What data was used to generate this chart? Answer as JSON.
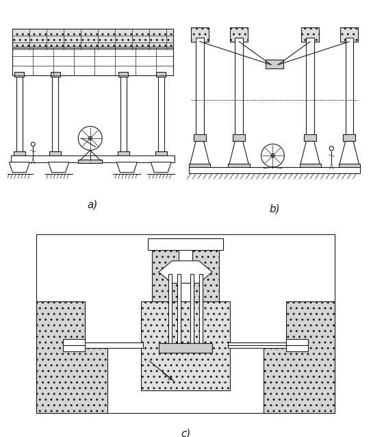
{
  "fig_width": 5.42,
  "fig_height": 6.38,
  "dpi": 100,
  "bg_color": "#ffffff",
  "label_a": "a)",
  "label_b": "b)",
  "label_c": "c)",
  "label_fontsize": 11,
  "line_color": "#1a1a1a",
  "fill_light": "#d8d8d8",
  "fill_dots": "#c8c8c8",
  "line_width": 0.8,
  "thin_line": 0.5
}
